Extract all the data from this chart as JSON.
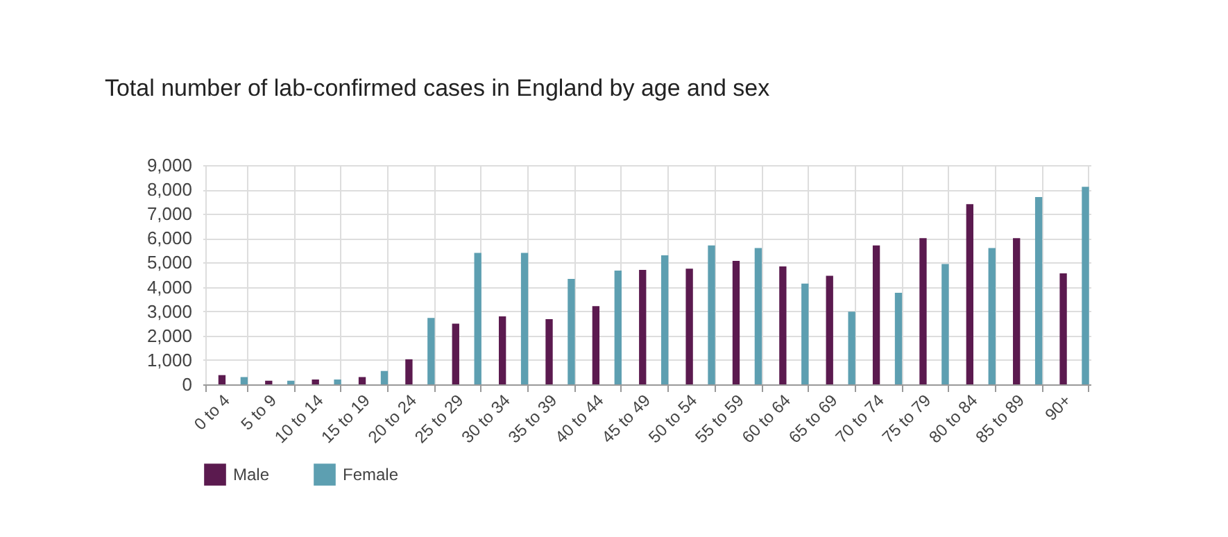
{
  "chart_data": {
    "type": "bar",
    "title": "Total number of lab-confirmed cases in England by age and sex",
    "categories": [
      "0 to 4",
      "5 to 9",
      "10 to 14",
      "15 to 19",
      "20 to 24",
      "25 to 29",
      "30 to 34",
      "35 to 39",
      "40 to 44",
      "45 to 49",
      "50 to 54",
      "55 to 59",
      "60 to 64",
      "65 to 69",
      "70 to 74",
      "75 to 79",
      "80 to 84",
      "85 to 89",
      "90+"
    ],
    "series": [
      {
        "name": "Male",
        "color": "#5b1a4f",
        "values": [
          380,
          150,
          200,
          300,
          1030,
          2490,
          2790,
          2680,
          3210,
          4700,
          4750,
          5070,
          4840,
          4460,
          5700,
          6000,
          7400,
          6000,
          4560
        ]
      },
      {
        "name": "Female",
        "color": "#5d9fb1",
        "values": [
          300,
          150,
          200,
          550,
          2730,
          5400,
          5400,
          4330,
          4670,
          5300,
          5700,
          5600,
          4140,
          2980,
          3760,
          4940,
          5600,
          7690,
          8110
        ]
      }
    ],
    "ylim": [
      0,
      9000
    ],
    "yticks": [
      {
        "value": 0,
        "label": "0"
      },
      {
        "value": 1000,
        "label": "1,000"
      },
      {
        "value": 2000,
        "label": "2,000"
      },
      {
        "value": 3000,
        "label": "3,000"
      },
      {
        "value": 4000,
        "label": "4,000"
      },
      {
        "value": 5000,
        "label": "5,000"
      },
      {
        "value": 6000,
        "label": "6,000"
      },
      {
        "value": 7000,
        "label": "7,000"
      },
      {
        "value": 8000,
        "label": "8,000"
      },
      {
        "value": 9000,
        "label": "9,000"
      }
    ],
    "grid": true,
    "legend": "bottom"
  }
}
